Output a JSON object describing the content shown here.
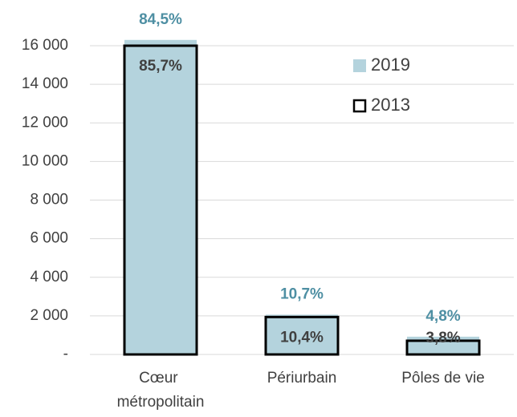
{
  "chart_data": {
    "type": "bar",
    "categories": [
      "Cœur métropolitain",
      "Périurbain",
      "Pôles de vie"
    ],
    "series": [
      {
        "name": "2019",
        "color": "#b4d3dd",
        "label_color": "#4e8fa3",
        "values": [
          16300,
          2060,
          920
        ],
        "labels": [
          "84,5%",
          "10,7%",
          "4,8%"
        ]
      },
      {
        "name": "2013",
        "color": "#000000",
        "label_color": "#404040",
        "values": [
          16000,
          1940,
          710
        ],
        "labels": [
          "85,7%",
          "10,4%",
          "3,8%"
        ]
      }
    ],
    "ylim": [
      0,
      16000
    ],
    "yticks": [
      {
        "value": 0,
        "label": "-"
      },
      {
        "value": 2000,
        "label": "2 000"
      },
      {
        "value": 4000,
        "label": "4 000"
      },
      {
        "value": 6000,
        "label": "6 000"
      },
      {
        "value": 8000,
        "label": "8 000"
      },
      {
        "value": 10000,
        "label": "10 000"
      },
      {
        "value": 12000,
        "label": "12 000"
      },
      {
        "value": 14000,
        "label": "14 000"
      },
      {
        "value": 16000,
        "label": "16 000"
      }
    ],
    "grid": true,
    "legend": "top-right"
  }
}
